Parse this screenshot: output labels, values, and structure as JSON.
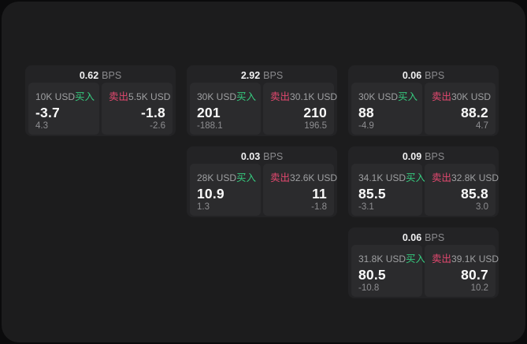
{
  "labels": {
    "bps_unit": "BPS",
    "buy": "买入",
    "sell": "卖出"
  },
  "colors": {
    "background": "#0b0b0c",
    "surface": "#1c1c1d",
    "card": "#232325",
    "panel": "#2b2b2d",
    "buy_accent": "#36c97e",
    "sell_accent": "#e2486f",
    "primary_text": "#fafafa",
    "muted_text": "#8e8e91"
  },
  "cards": [
    {
      "bps": "0.62",
      "buy": {
        "size": "10K USD",
        "price": "-3.7",
        "sub": "4.3"
      },
      "sell": {
        "size": "5.5K USD",
        "price": "-1.8",
        "sub": "-2.6"
      }
    },
    {
      "bps": "2.92",
      "buy": {
        "size": "30K USD",
        "price": "201",
        "sub": "-188.1"
      },
      "sell": {
        "size": "30.1K USD",
        "price": "210",
        "sub": "196.5"
      }
    },
    {
      "bps": "0.06",
      "buy": {
        "size": "30K USD",
        "price": "88",
        "sub": "-4.9"
      },
      "sell": {
        "size": "30K USD",
        "price": "88.2",
        "sub": "4.7"
      }
    },
    {
      "bps": "0.03",
      "buy": {
        "size": "28K USD",
        "price": "10.9",
        "sub": "1.3"
      },
      "sell": {
        "size": "32.6K USD",
        "price": "11",
        "sub": "-1.8"
      }
    },
    {
      "bps": "0.09",
      "buy": {
        "size": "34.1K USD",
        "price": "85.5",
        "sub": "-3.1"
      },
      "sell": {
        "size": "32.8K USD",
        "price": "85.8",
        "sub": "3.0"
      }
    },
    {
      "bps": "0.06",
      "buy": {
        "size": "31.8K USD",
        "price": "80.5",
        "sub": "-10.8"
      },
      "sell": {
        "size": "39.1K USD",
        "price": "80.7",
        "sub": "10.2"
      }
    }
  ]
}
